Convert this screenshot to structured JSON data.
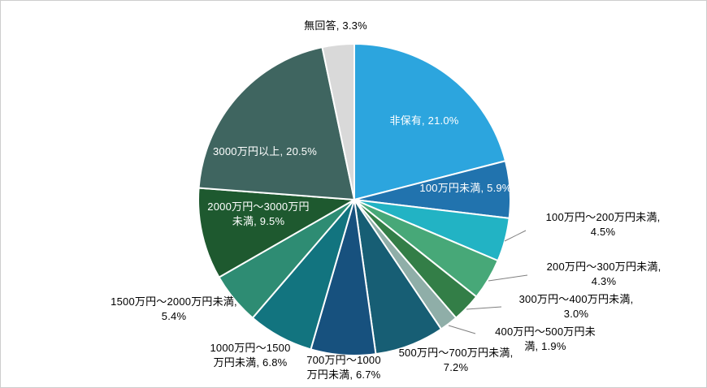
{
  "chart_data": {
    "type": "pie",
    "title": "",
    "direction": "clockwise",
    "start_angle_deg": 0,
    "legend": "none",
    "slice_border_color": "#FFFFFF",
    "slices": [
      {
        "label": "非保有",
        "value": 21.0,
        "color": "#2CA5DE",
        "text_color": "#FFFFFF",
        "position": "inside",
        "lines": [
          "非保有, 21.0%"
        ]
      },
      {
        "label": "100万円未満",
        "value": 5.9,
        "color": "#2173AE",
        "text_color": "#FFFFFF",
        "position": "inside",
        "lines": [
          "100万円未満, 5.9%"
        ]
      },
      {
        "label": "100万円～200万円未満",
        "value": 4.5,
        "color": "#22B3C4",
        "text_color": "#000000",
        "position": "outside",
        "lines": [
          "100万円～200万円未満,",
          "4.5%"
        ]
      },
      {
        "label": "200万円～300万円未満",
        "value": 4.3,
        "color": "#47A878",
        "text_color": "#000000",
        "position": "outside",
        "lines": [
          "200万円～300万円未満,",
          "4.3%"
        ]
      },
      {
        "label": "300万円～400万円未満",
        "value": 3.0,
        "color": "#337E47",
        "text_color": "#000000",
        "position": "outside",
        "lines": [
          "300万円～400万円未満,",
          "3.0%"
        ]
      },
      {
        "label": "400万円～500万円未満",
        "value": 1.9,
        "color": "#8FAEA8",
        "text_color": "#000000",
        "position": "outside",
        "lines": [
          "400万円～500万円未",
          "満, 1.9%"
        ]
      },
      {
        "label": "500万円～700万円未満",
        "value": 7.2,
        "color": "#175E74",
        "text_color": "#000000",
        "position": "outside",
        "lines": [
          "500万円～700万円未満,",
          "7.2%"
        ]
      },
      {
        "label": "700万円～1000万円未満",
        "value": 6.7,
        "color": "#17517E",
        "text_color": "#000000",
        "position": "outside",
        "lines": [
          "700万円～1000",
          "万円未満, 6.7%"
        ]
      },
      {
        "label": "1000万円～1500万円未満",
        "value": 6.8,
        "color": "#12747F",
        "text_color": "#000000",
        "position": "outside",
        "lines": [
          "1000万円～1500",
          "万円未満, 6.8%"
        ]
      },
      {
        "label": "1500万円～2000万円未満",
        "value": 5.4,
        "color": "#2E8C73",
        "text_color": "#000000",
        "position": "outside",
        "lines": [
          "1500万円～2000万円未満,",
          "5.4%"
        ]
      },
      {
        "label": "2000万円～3000万円未満",
        "value": 9.5,
        "color": "#1E592F",
        "text_color": "#FFFFFF",
        "position": "inside",
        "lines": [
          "2000万円～3000万円",
          "未満, 9.5%"
        ]
      },
      {
        "label": "3000万円以上",
        "value": 20.5,
        "color": "#3F6560",
        "text_color": "#FFFFFF",
        "position": "inside",
        "lines": [
          "3000万円以上, 20.5%"
        ]
      },
      {
        "label": "無回答",
        "value": 3.3,
        "color": "#D9D9D9",
        "text_color": "#000000",
        "position": "outside",
        "lines": [
          "無回答, 3.3%"
        ]
      }
    ]
  },
  "canvas": {
    "background": "#FFFFFF",
    "border_color": "#CDCDCD",
    "leader_line_color": "#7F7F7F"
  }
}
